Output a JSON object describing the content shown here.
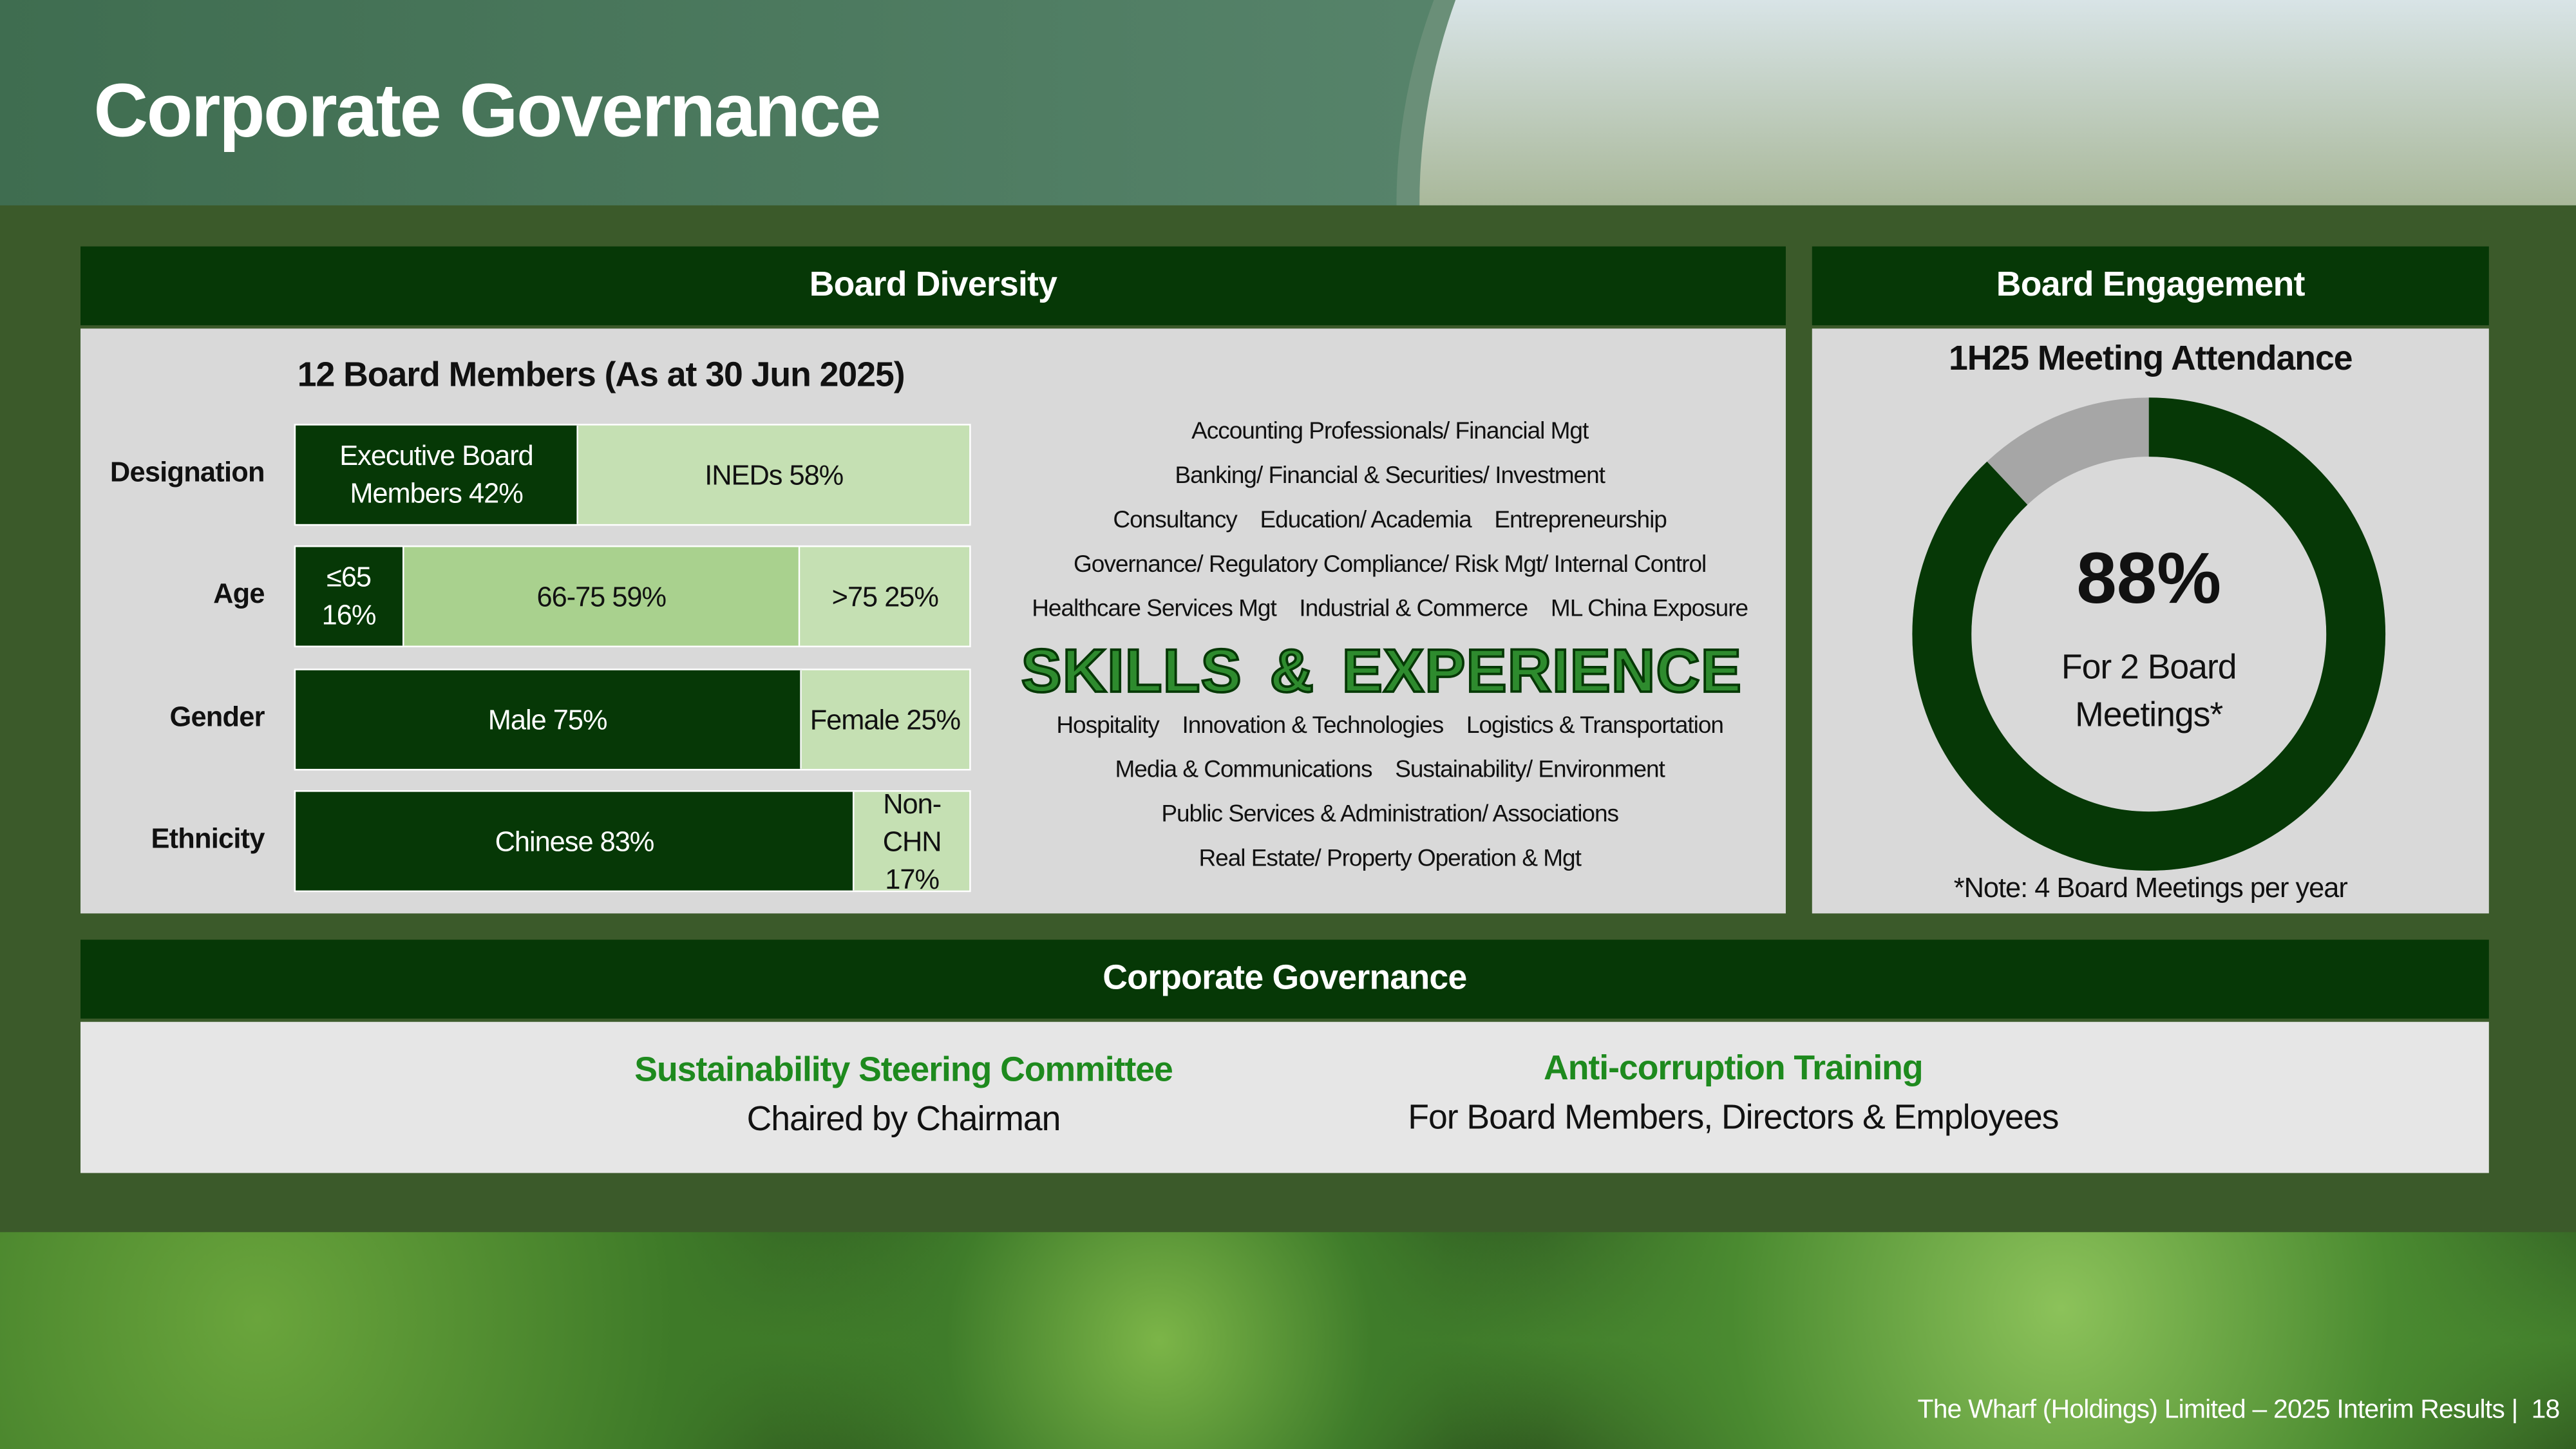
{
  "header": {
    "title": "Corporate Governance"
  },
  "board_diversity": {
    "title": "Board Diversity",
    "subtitle": "12 Board Members (As at 30 Jun 2025)",
    "rows": [
      {
        "label": "Designation",
        "segments": [
          {
            "label": "Executive Board Members",
            "value": 42,
            "value_label": "42%",
            "color": "#063806",
            "text_color": "#ffffff"
          },
          {
            "label": "INEDs",
            "value": 58,
            "value_label": "58%",
            "color": "#c5e0b3",
            "text_color": "#111111"
          }
        ]
      },
      {
        "label": "Age",
        "segments": [
          {
            "label": "≤65",
            "value": 16,
            "value_label": "16%",
            "color": "#063806",
            "text_color": "#ffffff"
          },
          {
            "label": "66-75",
            "value": 59,
            "value_label": "59%",
            "color": "#a9d18e",
            "text_color": "#111111"
          },
          {
            "label": ">75",
            "value": 25,
            "value_label": "25%",
            "color": "#c5e0b3",
            "text_color": "#111111"
          }
        ]
      },
      {
        "label": "Gender",
        "segments": [
          {
            "label": "Male",
            "value": 75,
            "value_label": "75%",
            "color": "#063806",
            "text_color": "#ffffff"
          },
          {
            "label": "Female",
            "value": 25,
            "value_label": "25%",
            "color": "#c5e0b3",
            "text_color": "#111111"
          }
        ]
      },
      {
        "label": "Ethnicity",
        "segments": [
          {
            "label": "Chinese",
            "value": 83,
            "value_label": "83%",
            "color": "#063806",
            "text_color": "#ffffff"
          },
          {
            "label": "Non-CHN",
            "value": 17,
            "value_label": "17%",
            "color": "#c5e0b3",
            "text_color": "#111111"
          }
        ]
      }
    ],
    "skills_heading": "SKILLS & EXPERIENCE",
    "skills_before": [
      [
        "Accounting Professionals/ Financial Mgt"
      ],
      [
        "Banking/ Financial & Securities/ Investment"
      ],
      [
        "Consultancy",
        "Education/ Academia",
        "Entrepreneurship"
      ],
      [
        "Governance/ Regulatory Compliance/ Risk Mgt/ Internal Control"
      ],
      [
        "Healthcare Services Mgt",
        "Industrial & Commerce",
        "ML China Exposure"
      ]
    ],
    "skills_after": [
      [
        "Hospitality",
        "Innovation & Technologies",
        "Logistics & Transportation"
      ],
      [
        "Media & Communications",
        "Sustainability/ Environment"
      ],
      [
        "Public Services & Administration/ Associations"
      ],
      [
        "Real Estate/  Property Operation & Mgt"
      ]
    ]
  },
  "board_engagement": {
    "title": "Board Engagement",
    "subtitle": "1H25 Meeting Attendance",
    "value": 88,
    "value_label": "88%",
    "caption": "For 2 Board Meetings*",
    "note": "*Note: 4 Board Meetings per year",
    "color": "#063806",
    "rest_color": "#a6a6a6"
  },
  "corporate_governance": {
    "title": "Corporate Governance",
    "items": [
      {
        "heading": "Sustainability Steering Committee",
        "text": "Chaired by Chairman"
      },
      {
        "heading": "Anti-corruption Training",
        "text": "For Board Members, Directors & Employees"
      }
    ]
  },
  "footer": {
    "text": "The Wharf (Holdings) Limited – 2025 Interim Results |",
    "page": 18
  }
}
